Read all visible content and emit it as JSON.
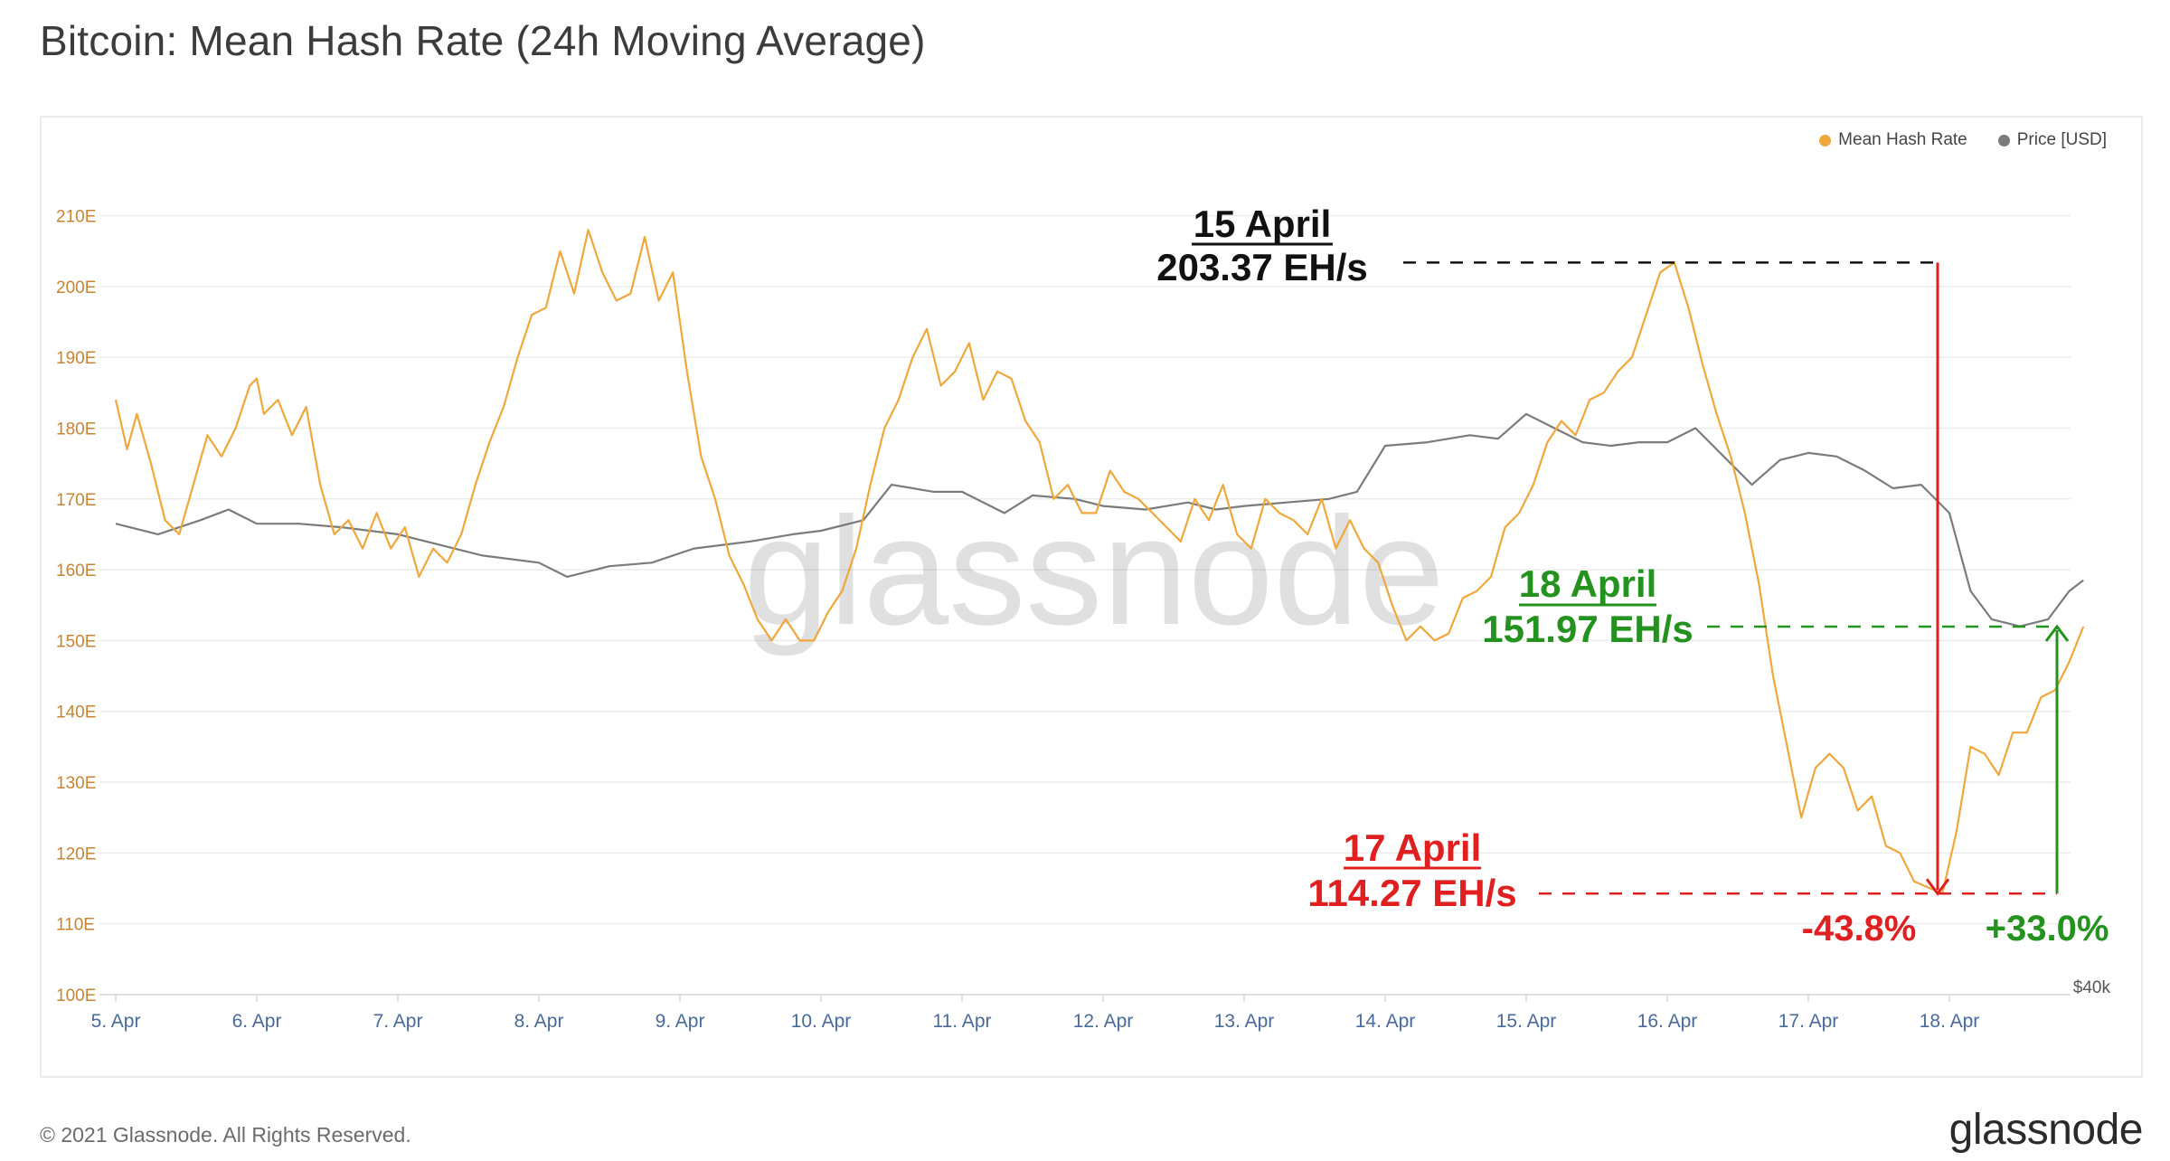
{
  "title": "Bitcoin: Mean Hash Rate (24h Moving Average)",
  "footer": {
    "copyright": "© 2021 Glassnode. All Rights Reserved.",
    "brand": "glassnode"
  },
  "watermark": "glassnode",
  "colors": {
    "hash": "#f0a73c",
    "price": "#7b7b7b",
    "peak": "#111111",
    "drop": "#e02020",
    "recover": "#23921e",
    "grid": "#ececec",
    "axis": "#c78432"
  },
  "chart_data": {
    "type": "line",
    "title": "Bitcoin: Mean Hash Rate (24h Moving Average)",
    "x_tick_labels": [
      "5. Apr",
      "6. Apr",
      "7. Apr",
      "8. Apr",
      "9. Apr",
      "10. Apr",
      "11. Apr",
      "12. Apr",
      "13. Apr",
      "14. Apr",
      "15. Apr",
      "16. Apr",
      "17. Apr",
      "18. Apr"
    ],
    "y_tick_labels": [
      "100E",
      "110E",
      "120E",
      "130E",
      "140E",
      "150E",
      "160E",
      "170E",
      "180E",
      "190E",
      "200E",
      "210E"
    ],
    "ylim": [
      100,
      213
    ],
    "xlim": [
      0,
      14.05
    ],
    "right_axis_label": "$40k",
    "legend_position": "top-right",
    "grid": true,
    "series": [
      {
        "name": "Mean Hash Rate",
        "x_unit": "days since 5. Apr",
        "points": [
          [
            0.0,
            184
          ],
          [
            0.08,
            177
          ],
          [
            0.15,
            182
          ],
          [
            0.25,
            175
          ],
          [
            0.35,
            167
          ],
          [
            0.45,
            165
          ],
          [
            0.55,
            172
          ],
          [
            0.65,
            179
          ],
          [
            0.75,
            176
          ],
          [
            0.85,
            180
          ],
          [
            0.9,
            183
          ],
          [
            0.95,
            186
          ],
          [
            1.0,
            187
          ],
          [
            1.05,
            182
          ],
          [
            1.15,
            184
          ],
          [
            1.25,
            179
          ],
          [
            1.35,
            183
          ],
          [
            1.45,
            172
          ],
          [
            1.55,
            165
          ],
          [
            1.65,
            167
          ],
          [
            1.75,
            163
          ],
          [
            1.85,
            168
          ],
          [
            1.95,
            163
          ],
          [
            2.05,
            166
          ],
          [
            2.15,
            159
          ],
          [
            2.25,
            163
          ],
          [
            2.35,
            161
          ],
          [
            2.45,
            165
          ],
          [
            2.55,
            172
          ],
          [
            2.65,
            178
          ],
          [
            2.75,
            183
          ],
          [
            2.85,
            190
          ],
          [
            2.95,
            196
          ],
          [
            3.05,
            197
          ],
          [
            3.15,
            205
          ],
          [
            3.25,
            199
          ],
          [
            3.35,
            208
          ],
          [
            3.45,
            202
          ],
          [
            3.55,
            198
          ],
          [
            3.65,
            199
          ],
          [
            3.75,
            207
          ],
          [
            3.85,
            198
          ],
          [
            3.95,
            202
          ],
          [
            4.05,
            188
          ],
          [
            4.15,
            176
          ],
          [
            4.25,
            170
          ],
          [
            4.35,
            162
          ],
          [
            4.45,
            158
          ],
          [
            4.55,
            153
          ],
          [
            4.65,
            150
          ],
          [
            4.75,
            153
          ],
          [
            4.85,
            150
          ],
          [
            4.95,
            150
          ],
          [
            5.05,
            154
          ],
          [
            5.15,
            157
          ],
          [
            5.25,
            163
          ],
          [
            5.35,
            172
          ],
          [
            5.45,
            180
          ],
          [
            5.55,
            184
          ],
          [
            5.65,
            190
          ],
          [
            5.75,
            194
          ],
          [
            5.85,
            186
          ],
          [
            5.95,
            188
          ],
          [
            6.05,
            192
          ],
          [
            6.15,
            184
          ],
          [
            6.25,
            188
          ],
          [
            6.35,
            187
          ],
          [
            6.45,
            181
          ],
          [
            6.55,
            178
          ],
          [
            6.65,
            170
          ],
          [
            6.75,
            172
          ],
          [
            6.85,
            168
          ],
          [
            6.95,
            168
          ],
          [
            7.05,
            174
          ],
          [
            7.15,
            171
          ],
          [
            7.25,
            170
          ],
          [
            7.35,
            168
          ],
          [
            7.45,
            166
          ],
          [
            7.55,
            164
          ],
          [
            7.65,
            170
          ],
          [
            7.75,
            167
          ],
          [
            7.85,
            172
          ],
          [
            7.95,
            165
          ],
          [
            8.05,
            163
          ],
          [
            8.15,
            170
          ],
          [
            8.25,
            168
          ],
          [
            8.35,
            167
          ],
          [
            8.45,
            165
          ],
          [
            8.55,
            170
          ],
          [
            8.65,
            163
          ],
          [
            8.75,
            167
          ],
          [
            8.85,
            163
          ],
          [
            8.95,
            161
          ],
          [
            9.05,
            155
          ],
          [
            9.15,
            150
          ],
          [
            9.25,
            152
          ],
          [
            9.35,
            150
          ],
          [
            9.45,
            151
          ],
          [
            9.55,
            156
          ],
          [
            9.65,
            157
          ],
          [
            9.75,
            159
          ],
          [
            9.85,
            166
          ],
          [
            9.95,
            168
          ],
          [
            10.05,
            172
          ],
          [
            10.15,
            178
          ],
          [
            10.25,
            181
          ],
          [
            10.35,
            179
          ],
          [
            10.45,
            184
          ],
          [
            10.55,
            185
          ],
          [
            10.65,
            188
          ],
          [
            10.75,
            190
          ],
          [
            10.85,
            196
          ],
          [
            10.95,
            202
          ],
          [
            11.05,
            203.37
          ],
          [
            11.15,
            197
          ],
          [
            11.25,
            189
          ],
          [
            11.35,
            182
          ],
          [
            11.45,
            176
          ],
          [
            11.55,
            168
          ],
          [
            11.65,
            158
          ],
          [
            11.75,
            145
          ],
          [
            11.85,
            135
          ],
          [
            11.95,
            125
          ],
          [
            12.05,
            132
          ],
          [
            12.15,
            134
          ],
          [
            12.25,
            132
          ],
          [
            12.35,
            126
          ],
          [
            12.45,
            128
          ],
          [
            12.55,
            121
          ],
          [
            12.65,
            120
          ],
          [
            12.75,
            116
          ],
          [
            12.95,
            114.27
          ],
          [
            13.05,
            123
          ],
          [
            13.15,
            135
          ],
          [
            13.25,
            134
          ],
          [
            13.35,
            131
          ],
          [
            13.45,
            137
          ],
          [
            13.55,
            137
          ],
          [
            13.65,
            142
          ],
          [
            13.75,
            143
          ],
          [
            13.85,
            147
          ],
          [
            13.95,
            151.97
          ]
        ]
      },
      {
        "name": "Price [USD]",
        "x_unit": "days since 5. Apr",
        "points": [
          [
            0.0,
            166.5
          ],
          [
            0.3,
            165
          ],
          [
            0.6,
            167
          ],
          [
            0.8,
            168.5
          ],
          [
            1.0,
            166.5
          ],
          [
            1.3,
            166.5
          ],
          [
            1.6,
            166
          ],
          [
            2.0,
            165
          ],
          [
            2.3,
            163.5
          ],
          [
            2.6,
            162
          ],
          [
            3.0,
            161
          ],
          [
            3.2,
            159
          ],
          [
            3.5,
            160.5
          ],
          [
            3.8,
            161
          ],
          [
            4.1,
            163
          ],
          [
            4.5,
            164
          ],
          [
            4.8,
            165
          ],
          [
            5.0,
            165.5
          ],
          [
            5.3,
            167
          ],
          [
            5.5,
            172
          ],
          [
            5.8,
            171
          ],
          [
            6.0,
            171
          ],
          [
            6.3,
            168
          ],
          [
            6.5,
            170.5
          ],
          [
            6.8,
            170
          ],
          [
            7.0,
            169
          ],
          [
            7.3,
            168.5
          ],
          [
            7.6,
            169.5
          ],
          [
            7.8,
            168.5
          ],
          [
            8.0,
            169
          ],
          [
            8.3,
            169.5
          ],
          [
            8.6,
            170
          ],
          [
            8.8,
            171
          ],
          [
            9.0,
            177.5
          ],
          [
            9.3,
            178
          ],
          [
            9.6,
            179
          ],
          [
            9.8,
            178.5
          ],
          [
            10.0,
            182
          ],
          [
            10.2,
            180
          ],
          [
            10.4,
            178
          ],
          [
            10.6,
            177.5
          ],
          [
            10.8,
            178
          ],
          [
            11.0,
            178
          ],
          [
            11.2,
            180
          ],
          [
            11.4,
            176
          ],
          [
            11.6,
            172
          ],
          [
            11.8,
            175.5
          ],
          [
            12.0,
            176.5
          ],
          [
            12.2,
            176
          ],
          [
            12.4,
            174
          ],
          [
            12.6,
            171.5
          ],
          [
            12.8,
            172
          ],
          [
            13.0,
            168
          ],
          [
            13.15,
            157
          ],
          [
            13.3,
            153
          ],
          [
            13.5,
            152
          ],
          [
            13.7,
            153
          ],
          [
            13.85,
            157
          ],
          [
            13.95,
            158.5
          ]
        ]
      }
    ],
    "annotations": [
      {
        "label": "15 April",
        "value": "203.37 EH/s",
        "y": 203.37,
        "x": 11.05,
        "color": "peak"
      },
      {
        "label": "18 April",
        "value": "151.97 EH/s",
        "y": 151.97,
        "x": 13.95,
        "color": "recover"
      },
      {
        "label": "17 April",
        "value": "114.27 EH/s",
        "y": 114.27,
        "x": 12.95,
        "color": "drop"
      },
      {
        "change": "-43.8%",
        "color": "drop"
      },
      {
        "change": "+33.0%",
        "color": "recover"
      }
    ]
  }
}
